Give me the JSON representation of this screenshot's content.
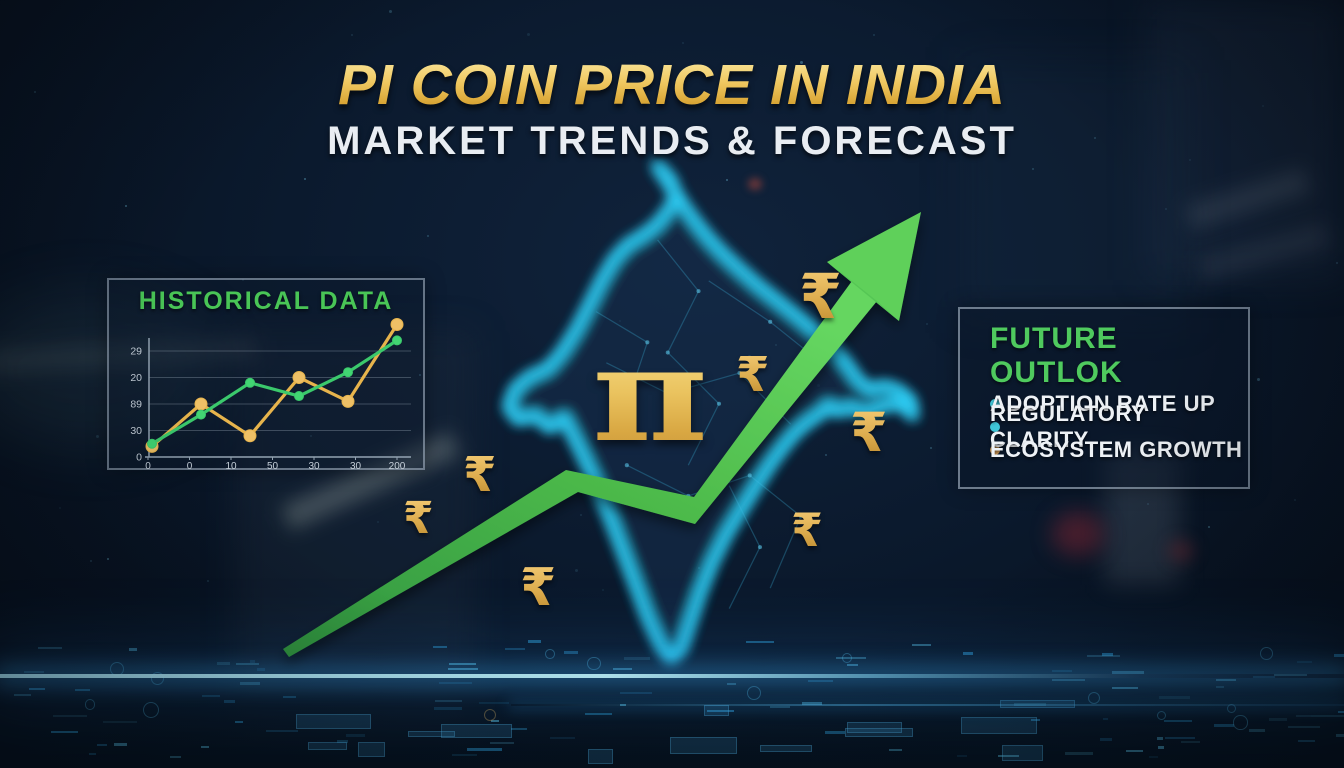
{
  "header": {
    "title": "PI COIN PRICE IN INDIA",
    "subtitle": "MARKET TRENDS & FORECAST"
  },
  "historical_panel": {
    "title": "HISTORICAL DATA"
  },
  "chart_data": {
    "type": "line",
    "title": "HISTORICAL DATA",
    "x_tick_labels": [
      "0",
      "0",
      "10",
      "50",
      "30",
      "30",
      "200"
    ],
    "y_tick_labels_top_to_bottom": [
      "29",
      "20",
      "89",
      "30",
      "0"
    ],
    "ylim": [
      0,
      55
    ],
    "grid": true,
    "legend_position": "none",
    "series": [
      {
        "name": "gold-line",
        "color": "#e7b44c",
        "marker_fill": "#eec066",
        "marker_radius": 6,
        "values": [
          4,
          20,
          8,
          30,
          21,
          50
        ]
      },
      {
        "name": "green-line",
        "color": "#3bc96c",
        "marker_fill": "#42d573",
        "marker_radius": 4.5,
        "values": [
          5,
          16,
          28,
          23,
          32,
          44
        ]
      }
    ]
  },
  "outlook_panel": {
    "title": "FUTURE OUTLOK",
    "items": [
      {
        "label": "ADOPTION RATE UP",
        "bullet_color": "#3fc6d8"
      },
      {
        "label": "REGULATORY CLARITY",
        "bullet_color": "#3fc6d8"
      },
      {
        "label": "ECOSYSTEM GROWTH",
        "bullet_color": "#dfa55e"
      }
    ]
  },
  "symbols": {
    "pi": "π",
    "rupee": "₹"
  },
  "colors": {
    "title_gold": "#eec45f",
    "subtitle_silver": "#e9edf2",
    "accent_green_text": "#4fca5e",
    "arrow_green": "#4fbb4c",
    "map_glow_cyan": "#2ed3fb",
    "rupee_gold": "#daa94a",
    "floor_glow_blue": "#3ca5e6",
    "background_navy": "#0b1a2e"
  }
}
